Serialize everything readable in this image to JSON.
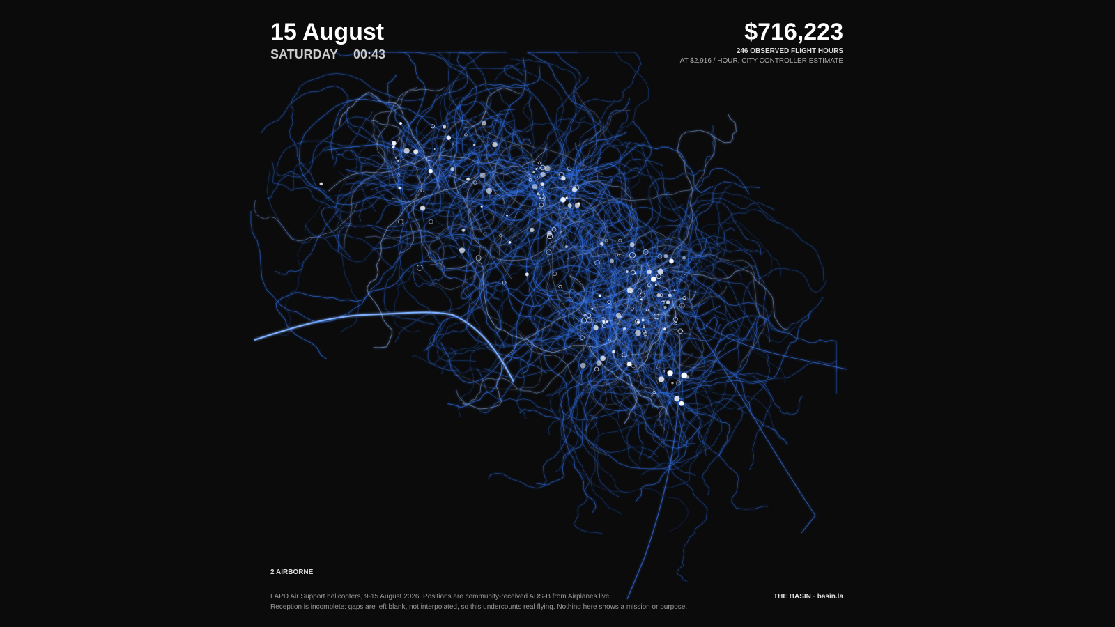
{
  "header": {
    "date": "15 August",
    "weekday": "SATURDAY",
    "time": "00:43"
  },
  "cost": {
    "total": "$716,223",
    "hours_line": "246 OBSERVED FLIGHT HOURS",
    "rate_line": "AT $2,916 / HOUR, CITY CONTROLLER ESTIMATE"
  },
  "status": "2 AIRBORNE",
  "footer": {
    "notes": [
      "LAPD Air Support helicopters, 9-15 August 2026. Positions are community-received ADS-B from Airplanes.live.",
      "Reception is incomplete: gaps are left blank, not interpolated, so this undercounts real flying. Nothing here shows a mission or purpose."
    ],
    "brand": "THE BASIN  ·  basin.la"
  }
}
